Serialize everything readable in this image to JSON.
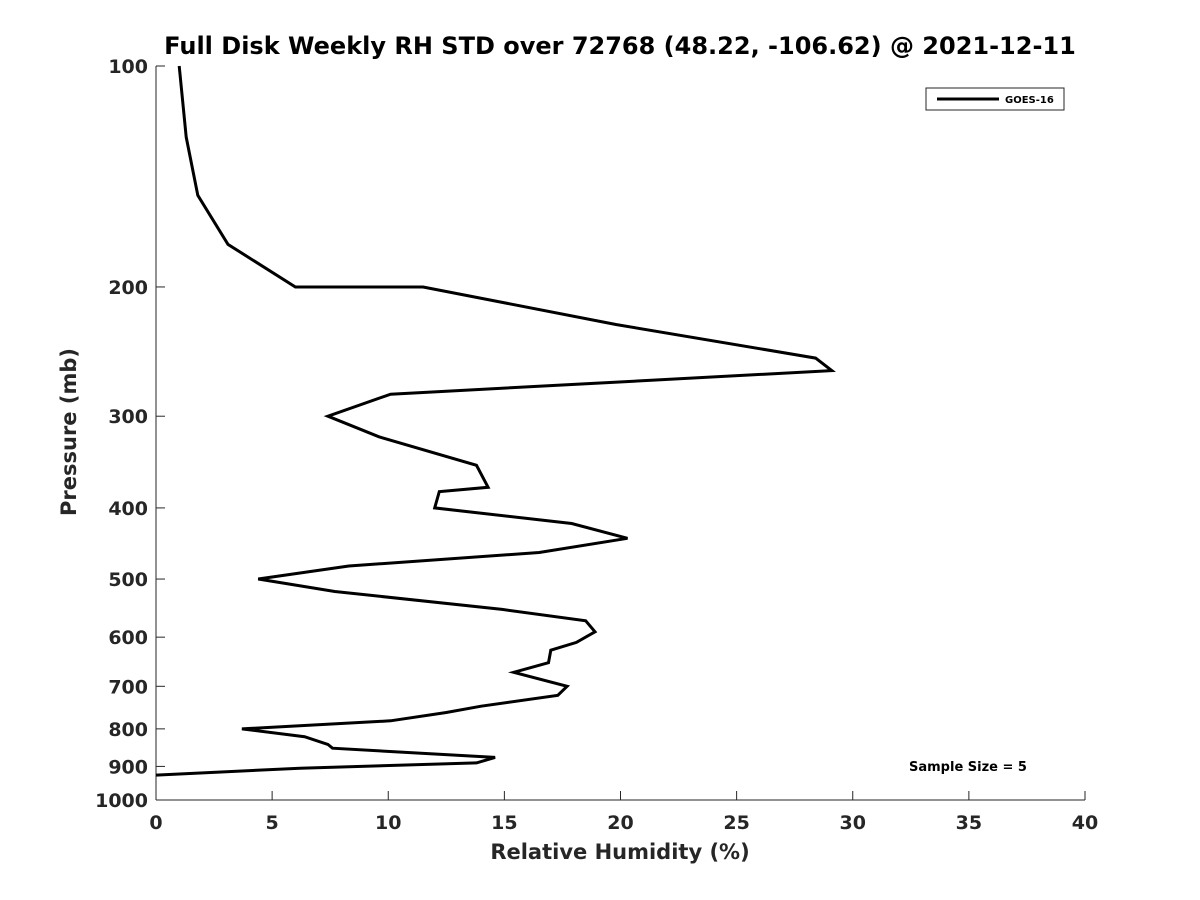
{
  "chart_data": {
    "type": "line",
    "title": "Full Disk Weekly RH STD over 72768 (48.22, -106.62) @ 2021-12-11",
    "xlabel": "Relative Humidity (%)",
    "ylabel": "Pressure (mb)",
    "xlim": [
      0,
      40
    ],
    "ylim": [
      100,
      1000
    ],
    "y_scale": "log",
    "y_reversed": true,
    "grid": false,
    "legend_position": "top-right",
    "x_ticks": [
      "0",
      "5",
      "10",
      "15",
      "20",
      "25",
      "30",
      "35",
      "40"
    ],
    "y_ticks": [
      "100",
      "200",
      "300",
      "400",
      "500",
      "600",
      "700",
      "800",
      "900",
      "1000"
    ],
    "annotation": "Sample Size = 5",
    "series": [
      {
        "name": "GOES-16",
        "color": "#000000",
        "points": [
          [
            1.0,
            100
          ],
          [
            1.3,
            125
          ],
          [
            1.8,
            150
          ],
          [
            3.1,
            175
          ],
          [
            6.0,
            200
          ],
          [
            11.5,
            200
          ],
          [
            19.8,
            225
          ],
          [
            28.4,
            250
          ],
          [
            29.1,
            260
          ],
          [
            10.1,
            280
          ],
          [
            7.4,
            300
          ],
          [
            9.6,
            320
          ],
          [
            13.8,
            350
          ],
          [
            14.3,
            375
          ],
          [
            12.2,
            380
          ],
          [
            12.0,
            400
          ],
          [
            17.9,
            420
          ],
          [
            20.3,
            440
          ],
          [
            16.5,
            460
          ],
          [
            8.3,
            480
          ],
          [
            4.4,
            500
          ],
          [
            7.7,
            520
          ],
          [
            14.9,
            550
          ],
          [
            18.5,
            570
          ],
          [
            18.9,
            590
          ],
          [
            18.1,
            610
          ],
          [
            17.0,
            625
          ],
          [
            16.9,
            650
          ],
          [
            15.4,
            670
          ],
          [
            17.7,
            700
          ],
          [
            17.3,
            720
          ],
          [
            14.0,
            745
          ],
          [
            12.5,
            760
          ],
          [
            10.1,
            780
          ],
          [
            3.7,
            800
          ],
          [
            6.4,
            820
          ],
          [
            7.4,
            840
          ],
          [
            7.6,
            850
          ],
          [
            14.6,
            875
          ],
          [
            13.8,
            890
          ],
          [
            6.2,
            905
          ],
          [
            0.0,
            925
          ]
        ]
      }
    ]
  }
}
